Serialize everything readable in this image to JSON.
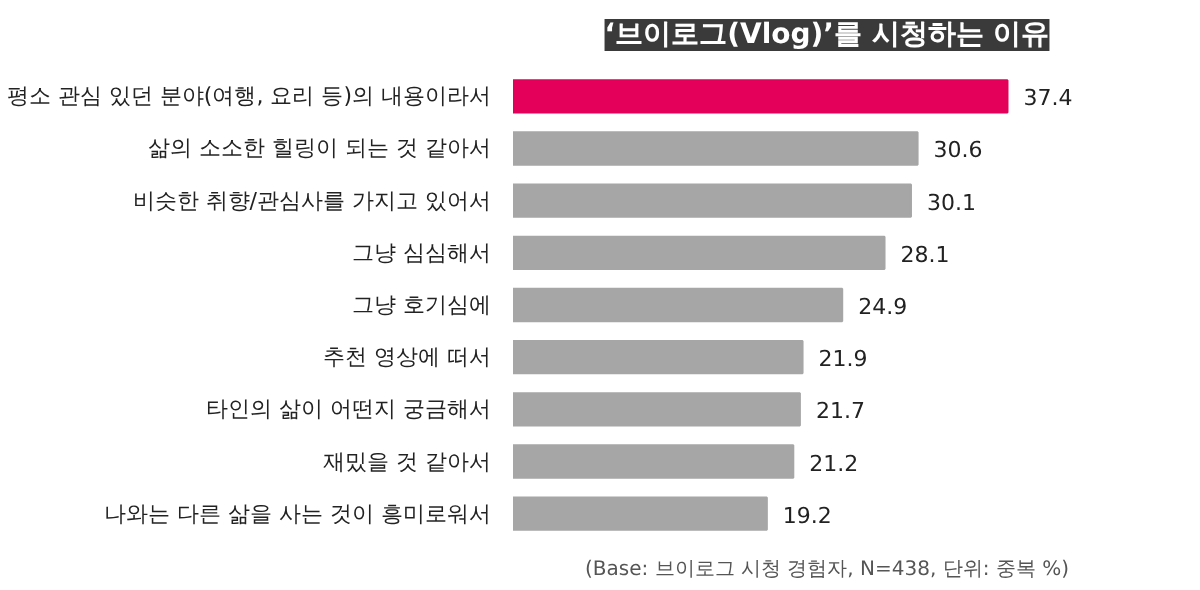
{
  "chart_data": {
    "type": "bar",
    "orientation": "horizontal",
    "title": "‘브이로그(Vlog)’를 시청하는 이유",
    "categories": [
      "평소 관심 있던 분야(여행, 요리 등)의 내용이라서",
      "삶의 소소한 힐링이 되는 것 같아서",
      "비슷한 취향/관심사를 가지고 있어서",
      "그냥 심심해서",
      "그냥 호기심에",
      "추천 영상에 떠서",
      "타인의 삶이 어떤지 궁금해서",
      "재밌을 것 같아서",
      "나와는 다른 삶을 사는 것이 흥미로워서"
    ],
    "values": [
      37.4,
      30.6,
      30.1,
      28.1,
      24.9,
      21.9,
      21.7,
      21.2,
      19.2
    ],
    "colors": [
      "#e4005a",
      "#a6a6a6",
      "#a6a6a6",
      "#a6a6a6",
      "#a6a6a6",
      "#a6a6a6",
      "#a6a6a6",
      "#a6a6a6",
      "#a6a6a6"
    ],
    "data_labels": true,
    "annotations": [
      "(Base: 브이로그 시청 경험자, N=438, 단위: 중복 %)"
    ]
  }
}
